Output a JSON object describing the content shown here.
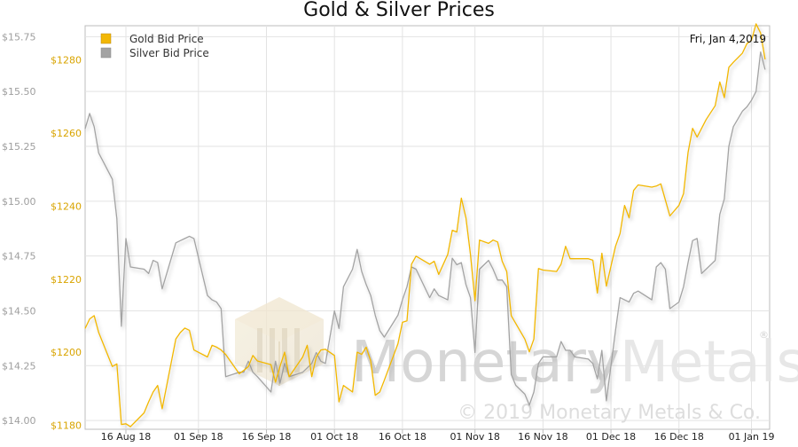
{
  "chart_data": {
    "type": "line",
    "title": "Gold & Silver Prices",
    "date_label": "Fri, Jan 4,2019",
    "legend": {
      "position": "top-left"
    },
    "grid": true,
    "x_axis": {
      "range": [
        "2018-08-07",
        "2019-01-05"
      ],
      "ticks": [
        {
          "label": "16 Aug 18",
          "date": "2018-08-16"
        },
        {
          "label": "01 Sep 18",
          "date": "2018-09-01"
        },
        {
          "label": "16 Sep 18",
          "date": "2018-09-16"
        },
        {
          "label": "01 Oct 18",
          "date": "2018-10-01"
        },
        {
          "label": "16 Oct 18",
          "date": "2018-10-16"
        },
        {
          "label": "01 Nov 18",
          "date": "2018-11-01"
        },
        {
          "label": "16 Nov 18",
          "date": "2018-11-16"
        },
        {
          "label": "01 Dec 18",
          "date": "2018-12-01"
        },
        {
          "label": "16 Dec 18",
          "date": "2018-12-16"
        },
        {
          "label": "01 Jan 19",
          "date": "2019-01-01"
        }
      ]
    },
    "y_axis_left": {
      "range": [
        13.96,
        15.8
      ],
      "ticks": [
        {
          "label": "$15.75",
          "value": 15.75
        },
        {
          "label": "$15.50",
          "value": 15.5
        },
        {
          "label": "$15.25",
          "value": 15.25
        },
        {
          "label": "$15.00",
          "value": 15.0
        },
        {
          "label": "$14.75",
          "value": 14.75
        },
        {
          "label": "$14.50",
          "value": 14.5
        },
        {
          "label": "$14.25",
          "value": 14.25
        },
        {
          "label": "$14.00",
          "value": 14.0
        }
      ],
      "color": "#9e9e9e"
    },
    "y_axis_inner": {
      "range": [
        1178.9,
        1289.4
      ],
      "ticks": [
        {
          "label": "$1280",
          "value": 1280
        },
        {
          "label": "$1260",
          "value": 1260
        },
        {
          "label": "$1240",
          "value": 1240
        },
        {
          "label": "$1220",
          "value": 1220
        },
        {
          "label": "$1200",
          "value": 1200
        },
        {
          "label": "$1180",
          "value": 1180
        }
      ],
      "color": "#d9a400"
    },
    "series": [
      {
        "name": "Gold Bid Price",
        "axis": "inner",
        "color": "#f2b705",
        "points": [
          [
            "2018-08-07",
            1206.5
          ],
          [
            "2018-08-08",
            1209.1
          ],
          [
            "2018-08-09",
            1210.0
          ],
          [
            "2018-08-10",
            1205.4
          ],
          [
            "2018-08-13",
            1196.1
          ],
          [
            "2018-08-14",
            1196.8
          ],
          [
            "2018-08-15",
            1180.2
          ],
          [
            "2018-08-16",
            1180.4
          ],
          [
            "2018-08-17",
            1179.6
          ],
          [
            "2018-08-20",
            1183.4
          ],
          [
            "2018-08-21",
            1186.4
          ],
          [
            "2018-08-22",
            1189.1
          ],
          [
            "2018-08-23",
            1190.9
          ],
          [
            "2018-08-24",
            1184.5
          ],
          [
            "2018-08-27",
            1203.6
          ],
          [
            "2018-08-28",
            1205.4
          ],
          [
            "2018-08-29",
            1206.6
          ],
          [
            "2018-08-30",
            1206.0
          ],
          [
            "2018-08-31",
            1200.6
          ],
          [
            "2018-09-03",
            1198.7
          ],
          [
            "2018-09-04",
            1201.9
          ],
          [
            "2018-09-05",
            1201.4
          ],
          [
            "2018-09-06",
            1200.6
          ],
          [
            "2018-09-07",
            1199.4
          ],
          [
            "2018-09-10",
            1194.1
          ],
          [
            "2018-09-11",
            1195.0
          ],
          [
            "2018-09-12",
            1196.1
          ],
          [
            "2018-09-13",
            1199.1
          ],
          [
            "2018-09-14",
            1197.6
          ],
          [
            "2018-09-17",
            1196.6
          ],
          [
            "2018-09-18",
            1191.8
          ],
          [
            "2018-09-19",
            1196.1
          ],
          [
            "2018-09-20",
            1200.0
          ],
          [
            "2018-09-21",
            1193.3
          ],
          [
            "2018-09-24",
            1198.7
          ],
          [
            "2018-09-25",
            1201.9
          ],
          [
            "2018-09-26",
            1193.3
          ],
          [
            "2018-09-27",
            1198.7
          ],
          [
            "2018-09-28",
            1200.6
          ],
          [
            "2018-09-29",
            1200.8
          ],
          [
            "2018-10-01",
            1199.1
          ],
          [
            "2018-10-02",
            1186.4
          ],
          [
            "2018-10-03",
            1190.9
          ],
          [
            "2018-10-05",
            1189.1
          ],
          [
            "2018-10-06",
            1200.0
          ],
          [
            "2018-10-07",
            1199.4
          ],
          [
            "2018-10-08",
            1201.4
          ],
          [
            "2018-10-09",
            1197.6
          ],
          [
            "2018-10-10",
            1188.2
          ],
          [
            "2018-10-11",
            1189.1
          ],
          [
            "2018-10-12",
            1192.3
          ],
          [
            "2018-10-15",
            1202.3
          ],
          [
            "2018-10-16",
            1208.2
          ],
          [
            "2018-10-17",
            1208.6
          ],
          [
            "2018-10-18",
            1224.1
          ],
          [
            "2018-10-19",
            1226.3
          ],
          [
            "2018-10-22",
            1224.1
          ],
          [
            "2018-10-23",
            1224.9
          ],
          [
            "2018-10-24",
            1221.3
          ],
          [
            "2018-10-26",
            1226.8
          ],
          [
            "2018-10-27",
            1233.4
          ],
          [
            "2018-10-28",
            1232.9
          ],
          [
            "2018-10-29",
            1242.2
          ],
          [
            "2018-10-30",
            1236.8
          ],
          [
            "2018-10-31",
            1226.8
          ],
          [
            "2018-11-01",
            1214.1
          ],
          [
            "2018-11-02",
            1230.7
          ],
          [
            "2018-11-04",
            1229.8
          ],
          [
            "2018-11-05",
            1230.7
          ],
          [
            "2018-11-06",
            1230.2
          ],
          [
            "2018-11-07",
            1224.9
          ],
          [
            "2018-11-08",
            1222.1
          ],
          [
            "2018-11-09",
            1210.0
          ],
          [
            "2018-11-12",
            1203.6
          ],
          [
            "2018-11-13",
            1200.1
          ],
          [
            "2018-11-14",
            1203.6
          ],
          [
            "2018-11-15",
            1222.9
          ],
          [
            "2018-11-16",
            1222.5
          ],
          [
            "2018-11-19",
            1222.1
          ],
          [
            "2018-11-20",
            1224.1
          ],
          [
            "2018-11-21",
            1229.0
          ],
          [
            "2018-11-22",
            1225.6
          ],
          [
            "2018-11-23",
            1225.6
          ],
          [
            "2018-11-26",
            1225.6
          ],
          [
            "2018-11-27",
            1225.2
          ],
          [
            "2018-11-28",
            1216.2
          ],
          [
            "2018-11-29",
            1227.1
          ],
          [
            "2018-11-30",
            1218.1
          ],
          [
            "2018-12-02",
            1229.0
          ],
          [
            "2018-12-03",
            1232.5
          ],
          [
            "2018-12-04",
            1240.2
          ],
          [
            "2018-12-05",
            1236.8
          ],
          [
            "2018-12-06",
            1244.3
          ],
          [
            "2018-12-07",
            1245.8
          ],
          [
            "2018-12-10",
            1245.2
          ],
          [
            "2018-12-11",
            1245.5
          ],
          [
            "2018-12-12",
            1246.1
          ],
          [
            "2018-12-13",
            1241.7
          ],
          [
            "2018-12-14",
            1237.3
          ],
          [
            "2018-12-16",
            1240.2
          ],
          [
            "2018-12-17",
            1243.4
          ],
          [
            "2018-12-18",
            1254.7
          ],
          [
            "2018-12-19",
            1261.3
          ],
          [
            "2018-12-20",
            1258.9
          ],
          [
            "2018-12-21",
            1261.3
          ],
          [
            "2018-12-22",
            1263.7
          ],
          [
            "2018-12-24",
            1267.5
          ],
          [
            "2018-12-25",
            1274.0
          ],
          [
            "2018-12-26",
            1269.7
          ],
          [
            "2018-12-27",
            1278.0
          ],
          [
            "2018-12-28",
            1279.4
          ],
          [
            "2018-12-30",
            1281.9
          ],
          [
            "2018-12-31",
            1284.5
          ],
          [
            "2019-01-01",
            1285.4
          ],
          [
            "2019-01-02",
            1289.9
          ],
          [
            "2019-01-03",
            1287.4
          ],
          [
            "2019-01-04",
            1280.2
          ]
        ]
      },
      {
        "name": "Silver Bid Price",
        "axis": "left",
        "color": "#a3a3a3",
        "points": [
          [
            "2018-08-07",
            15.33
          ],
          [
            "2018-08-08",
            15.4
          ],
          [
            "2018-08-09",
            15.34
          ],
          [
            "2018-08-10",
            15.22
          ],
          [
            "2018-08-13",
            15.1
          ],
          [
            "2018-08-14",
            14.92
          ],
          [
            "2018-08-15",
            14.43
          ],
          [
            "2018-08-16",
            14.83
          ],
          [
            "2018-08-17",
            14.7
          ],
          [
            "2018-08-20",
            14.69
          ],
          [
            "2018-08-21",
            14.67
          ],
          [
            "2018-08-22",
            14.73
          ],
          [
            "2018-08-23",
            14.72
          ],
          [
            "2018-08-24",
            14.6
          ],
          [
            "2018-08-27",
            14.81
          ],
          [
            "2018-08-28",
            14.82
          ],
          [
            "2018-08-29",
            14.83
          ],
          [
            "2018-08-30",
            14.84
          ],
          [
            "2018-08-31",
            14.83
          ],
          [
            "2018-09-03",
            14.57
          ],
          [
            "2018-09-04",
            14.55
          ],
          [
            "2018-09-05",
            14.54
          ],
          [
            "2018-09-06",
            14.51
          ],
          [
            "2018-09-07",
            14.2
          ],
          [
            "2018-09-10",
            14.22
          ],
          [
            "2018-09-11",
            14.22
          ],
          [
            "2018-09-12",
            14.27
          ],
          [
            "2018-09-13",
            14.22
          ],
          [
            "2018-09-14",
            14.2
          ],
          [
            "2018-09-17",
            14.13
          ],
          [
            "2018-09-18",
            14.27
          ],
          [
            "2018-09-19",
            14.17
          ],
          [
            "2018-09-20",
            14.26
          ],
          [
            "2018-09-21",
            14.2
          ],
          [
            "2018-09-24",
            14.22
          ],
          [
            "2018-09-25",
            14.24
          ],
          [
            "2018-09-26",
            14.26
          ],
          [
            "2018-09-27",
            14.31
          ],
          [
            "2018-09-28",
            14.27
          ],
          [
            "2018-09-29",
            14.26
          ],
          [
            "2018-10-01",
            14.5
          ],
          [
            "2018-10-02",
            14.42
          ],
          [
            "2018-10-03",
            14.61
          ],
          [
            "2018-10-05",
            14.69
          ],
          [
            "2018-10-06",
            14.78
          ],
          [
            "2018-10-07",
            14.68
          ],
          [
            "2018-10-08",
            14.62
          ],
          [
            "2018-10-09",
            14.57
          ],
          [
            "2018-10-10",
            14.48
          ],
          [
            "2018-10-11",
            14.41
          ],
          [
            "2018-10-12",
            14.38
          ],
          [
            "2018-10-15",
            14.48
          ],
          [
            "2018-10-16",
            14.55
          ],
          [
            "2018-10-17",
            14.61
          ],
          [
            "2018-10-18",
            14.7
          ],
          [
            "2018-10-19",
            14.69
          ],
          [
            "2018-10-22",
            14.56
          ],
          [
            "2018-10-23",
            14.6
          ],
          [
            "2018-10-24",
            14.57
          ],
          [
            "2018-10-26",
            14.55
          ],
          [
            "2018-10-27",
            14.74
          ],
          [
            "2018-10-28",
            14.71
          ],
          [
            "2018-10-29",
            14.72
          ],
          [
            "2018-10-30",
            14.62
          ],
          [
            "2018-10-31",
            14.56
          ],
          [
            "2018-11-01",
            14.31
          ],
          [
            "2018-11-02",
            14.69
          ],
          [
            "2018-11-04",
            14.73
          ],
          [
            "2018-11-05",
            14.69
          ],
          [
            "2018-11-06",
            14.64
          ],
          [
            "2018-11-07",
            14.64
          ],
          [
            "2018-11-08",
            14.61
          ],
          [
            "2018-11-09",
            14.21
          ],
          [
            "2018-11-10",
            14.16
          ],
          [
            "2018-11-12",
            14.12
          ],
          [
            "2018-11-13",
            14.07
          ],
          [
            "2018-11-14",
            14.13
          ],
          [
            "2018-11-15",
            14.26
          ],
          [
            "2018-11-16",
            14.29
          ],
          [
            "2018-11-19",
            14.29
          ],
          [
            "2018-11-20",
            14.36
          ],
          [
            "2018-11-21",
            14.32
          ],
          [
            "2018-11-22",
            14.32
          ],
          [
            "2018-11-23",
            14.29
          ],
          [
            "2018-11-26",
            14.28
          ],
          [
            "2018-11-27",
            14.26
          ],
          [
            "2018-11-28",
            14.19
          ],
          [
            "2018-11-29",
            14.32
          ],
          [
            "2018-11-30",
            14.09
          ],
          [
            "2018-12-02",
            14.41
          ],
          [
            "2018-12-03",
            14.56
          ],
          [
            "2018-12-04",
            14.55
          ],
          [
            "2018-12-05",
            14.54
          ],
          [
            "2018-12-06",
            14.58
          ],
          [
            "2018-12-07",
            14.59
          ],
          [
            "2018-12-10",
            14.55
          ],
          [
            "2018-12-11",
            14.7
          ],
          [
            "2018-12-12",
            14.72
          ],
          [
            "2018-12-13",
            14.69
          ],
          [
            "2018-12-14",
            14.51
          ],
          [
            "2018-12-16",
            14.54
          ],
          [
            "2018-12-17",
            14.61
          ],
          [
            "2018-12-18",
            14.72
          ],
          [
            "2018-12-19",
            14.82
          ],
          [
            "2018-12-20",
            14.83
          ],
          [
            "2018-12-21",
            14.67
          ],
          [
            "2018-12-22",
            14.69
          ],
          [
            "2018-12-24",
            14.73
          ],
          [
            "2018-12-25",
            14.94
          ],
          [
            "2018-12-26",
            15.01
          ],
          [
            "2018-12-27",
            15.25
          ],
          [
            "2018-12-28",
            15.34
          ],
          [
            "2018-12-30",
            15.41
          ],
          [
            "2018-12-31",
            15.43
          ],
          [
            "2019-01-01",
            15.46
          ],
          [
            "2019-01-02",
            15.5
          ],
          [
            "2019-01-03",
            15.68
          ],
          [
            "2019-01-04",
            15.6
          ]
        ]
      }
    ]
  },
  "watermark": {
    "brand": "MonetaryMetals",
    "brand_part1": "Monetary",
    "brand_part2": "Metals",
    "registered": "®",
    "copyright": "© 2019 Monetary Metals & Co."
  }
}
